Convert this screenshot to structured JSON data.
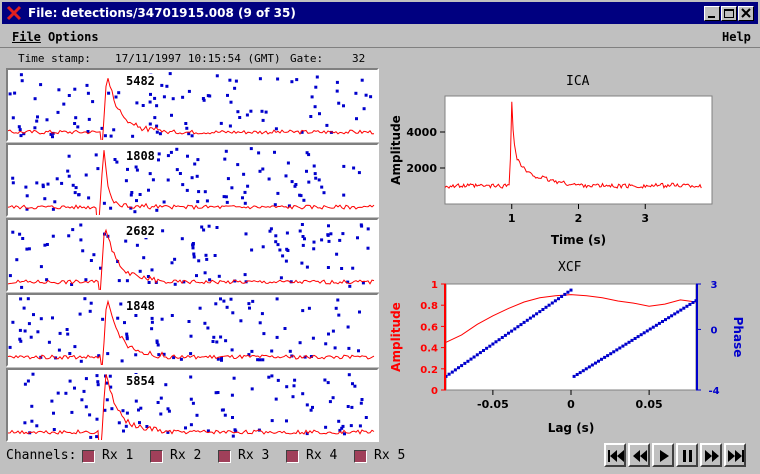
{
  "window": {
    "title": "File: detections/34701915.008 (9 of 35)",
    "controls": [
      "minimize",
      "maximize",
      "close"
    ]
  },
  "menu": {
    "file": "File",
    "options": "Options",
    "help": "Help"
  },
  "info": {
    "timestamp_label": "Time stamp:",
    "timestamp_value": "17/11/1997 10:15:54 (GMT)",
    "gate_label": "Gate:",
    "gate_value": "32"
  },
  "traces": [
    {
      "peak": "5482"
    },
    {
      "peak": "1808"
    },
    {
      "peak": "2682"
    },
    {
      "peak": "1848"
    },
    {
      "peak": "5854"
    }
  ],
  "colors": {
    "amplitude": "#ff0000",
    "phase": "#0000cc",
    "scatter": "#0000cc",
    "checkbox": "#a0405a"
  },
  "chart_data": [
    {
      "type": "line",
      "title": "ICA",
      "xlabel": "Time (s)",
      "ylabel": "Amplitude",
      "xticks": [
        "1",
        "2",
        "3"
      ],
      "yticks": [
        "2000",
        "4000"
      ],
      "xlim": [
        0,
        4
      ],
      "ylim": [
        0,
        6000
      ],
      "series": [
        {
          "x": [
            0,
            0.5,
            0.9,
            0.97,
            1.0,
            1.03,
            1.07,
            1.15,
            1.25,
            1.4,
            1.6,
            1.8,
            2.0,
            2.5,
            3.0,
            3.5,
            3.85
          ],
          "values": [
            1000,
            1000,
            1000,
            1100,
            5700,
            3500,
            2600,
            2100,
            1700,
            1500,
            1300,
            1150,
            1050,
            1000,
            1000,
            1050,
            1000
          ]
        }
      ]
    },
    {
      "type": "line",
      "title": "XCF",
      "xlabel": "Lag (s)",
      "ylabel": "Amplitude",
      "y2label": "Phase",
      "xticks": [
        "-0.05",
        "0",
        "0.05"
      ],
      "yticks": [
        "0",
        "0.2",
        "0.4",
        "0.6",
        "0.8",
        "1"
      ],
      "y2ticks": [
        "-4",
        "0",
        "3"
      ],
      "xlim": [
        -0.08,
        0.08
      ],
      "ylim": [
        0,
        1
      ],
      "y2lim": [
        -4,
        3
      ],
      "series": [
        {
          "axis": "left",
          "x": [
            -0.08,
            -0.07,
            -0.06,
            -0.05,
            -0.04,
            -0.03,
            -0.02,
            -0.01,
            0,
            0.01,
            0.02,
            0.03,
            0.04,
            0.05,
            0.06,
            0.07,
            0.08
          ],
          "values": [
            0.45,
            0.52,
            0.62,
            0.7,
            0.77,
            0.83,
            0.87,
            0.89,
            0.9,
            0.89,
            0.87,
            0.84,
            0.82,
            0.79,
            0.81,
            0.85,
            0.83
          ]
        },
        {
          "axis": "right",
          "x": [
            -0.08,
            -0.06,
            -0.04,
            -0.02,
            0,
            0.002,
            0.02,
            0.04,
            0.06,
            0.08
          ],
          "values": [
            -3.1,
            -2.0,
            -0.8,
            0.5,
            2.6,
            -3.1,
            -2.1,
            -0.9,
            0.4,
            1.9
          ]
        }
      ]
    }
  ],
  "channels": {
    "label": "Channels:",
    "items": [
      {
        "label": "Rx 1"
      },
      {
        "label": "Rx 2"
      },
      {
        "label": "Rx 3"
      },
      {
        "label": "Rx 4"
      },
      {
        "label": "Rx 5"
      }
    ]
  },
  "nav": [
    "first-icon",
    "previous-icon",
    "play-icon",
    "pause-icon",
    "next-icon",
    "last-icon"
  ]
}
